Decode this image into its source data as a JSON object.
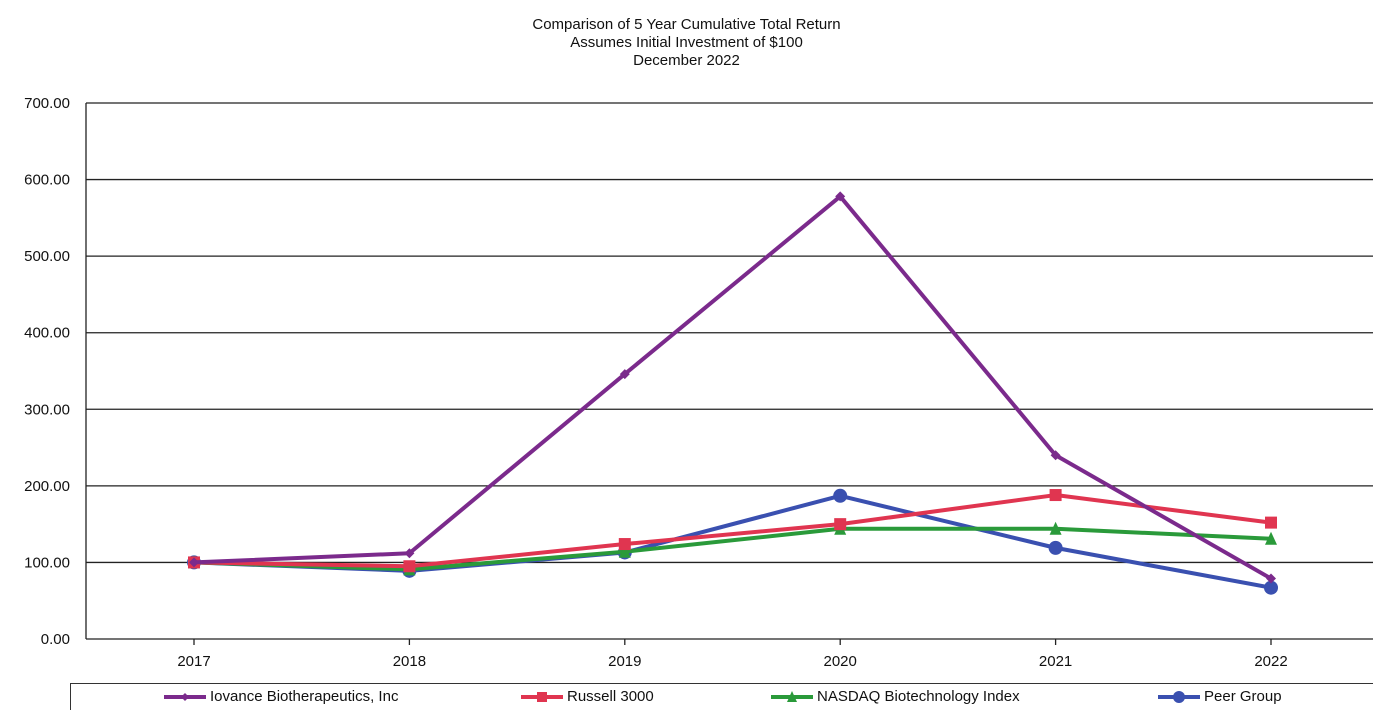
{
  "chart_data": {
    "type": "line",
    "title": "Comparison of 5 Year Cumulative Total Return",
    "subtitle": [
      "Assumes Initial Investment of $100",
      "December 2022"
    ],
    "categories": [
      "2017",
      "2018",
      "2019",
      "2020",
      "2021",
      "2022"
    ],
    "ylim": [
      0,
      700
    ],
    "yticks": [
      "0.00",
      "100.00",
      "200.00",
      "300.00",
      "400.00",
      "500.00",
      "600.00",
      "700.00"
    ],
    "grid": true,
    "legend_position": "bottom",
    "series": [
      {
        "name": "Iovance Biotherapeutics, Inc",
        "color": "#7b2a8c",
        "marker": "diamond",
        "values": [
          100,
          112,
          346,
          578,
          240,
          79
        ]
      },
      {
        "name": "Russell 3000",
        "color": "#e03550",
        "marker": "square",
        "values": [
          100,
          95,
          124,
          150,
          188,
          152
        ]
      },
      {
        "name": "NASDAQ Biotechnology Index",
        "color": "#2a9a3a",
        "marker": "triangle",
        "values": [
          100,
          91,
          114,
          144,
          144,
          131
        ]
      },
      {
        "name": "Peer Group",
        "color": "#3a50b0",
        "marker": "circle",
        "values": [
          100,
          89,
          113,
          187,
          119,
          67
        ]
      }
    ]
  }
}
